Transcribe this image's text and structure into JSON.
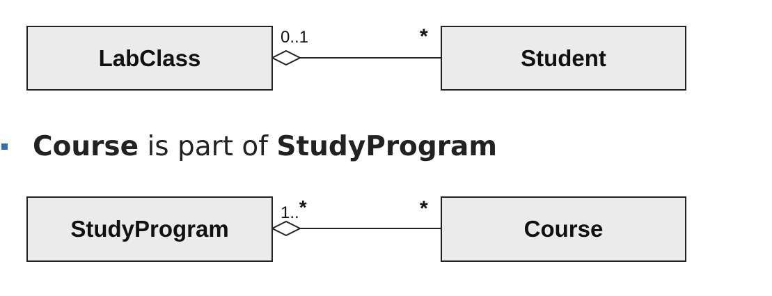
{
  "diagram1": {
    "whole": "LabClass",
    "part": "Student",
    "whole_multiplicity": "0..1",
    "part_multiplicity": "*"
  },
  "statement": {
    "part": "Course",
    "middle": " is part of ",
    "whole": "StudyProgram"
  },
  "diagram2": {
    "whole": "StudyProgram",
    "part": "Course",
    "whole_multiplicity_prefix": "1..",
    "whole_multiplicity_star": "*",
    "part_multiplicity": "*"
  },
  "colors": {
    "box_fill": "#ebebeb",
    "stroke": "#222222",
    "bullet": "#2f6fb3"
  },
  "icons": {
    "aggregation": "hollow-diamond-icon",
    "bullet": "square-bullet-icon"
  }
}
